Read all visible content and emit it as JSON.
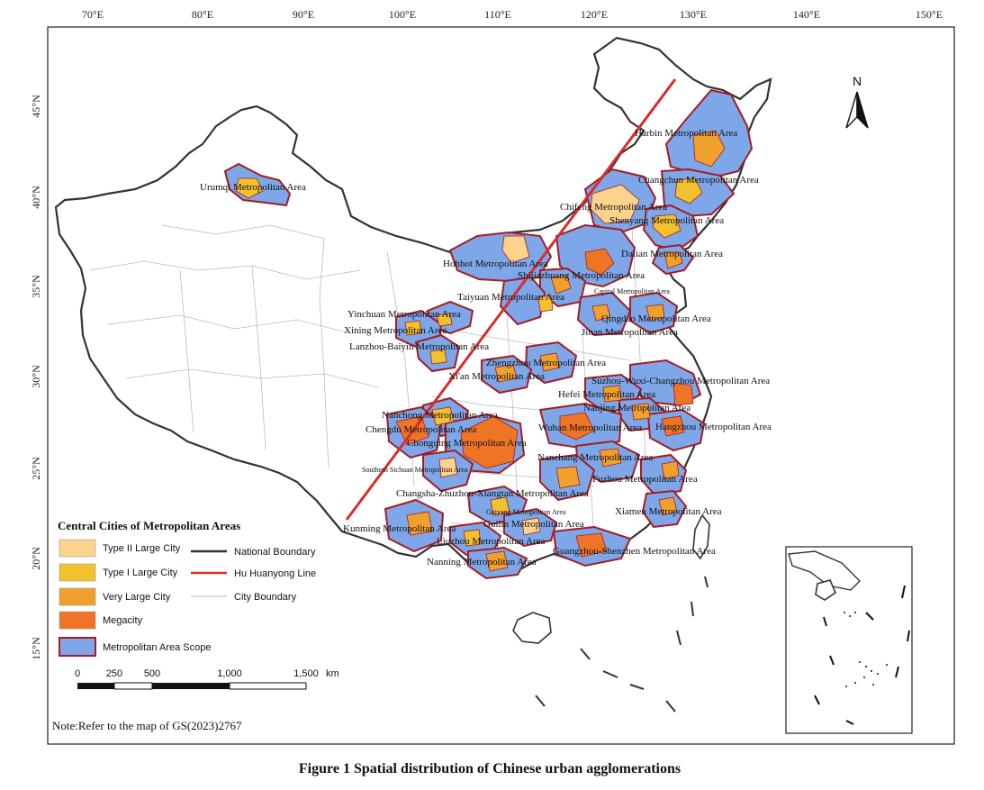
{
  "map": {
    "lon_ticks": [
      "70°E",
      "80°E",
      "90°E",
      "100°E",
      "110°E",
      "120°E",
      "130°E",
      "140°E",
      "150°E"
    ],
    "lat_ticks": [
      "45°N",
      "40°N",
      "35°N",
      "30°N",
      "25°N",
      "20°N",
      "15°N"
    ],
    "north_label": "N",
    "colors": {
      "type2": "#FBD38D",
      "type1": "#F2C12E",
      "very_large": "#F0A02C",
      "megacity": "#EE7426",
      "metro_fill": "#7DA7E8",
      "metro_border": "#A51C24",
      "hu_line": "#D42E2E",
      "national_boundary": "#333333",
      "city_boundary": "#BBBBBB"
    },
    "metro_areas": [
      {
        "name": "Harbin Metropolitan Area"
      },
      {
        "name": "Urumqi Metropolitan Area"
      },
      {
        "name": "Changchun Metropolitan Area"
      },
      {
        "name": "Chifeng Metropolitan Area"
      },
      {
        "name": "Shenyang Metropolitan Area"
      },
      {
        "name": "Dalian Metropolitan Area"
      },
      {
        "name": "Hohhot Metropolitan Area"
      },
      {
        "name": "Shijiazhuang Metropolitan Area"
      },
      {
        "name": "Capital Metropolitan Area"
      },
      {
        "name": "Taiyuan Metropolitan Area"
      },
      {
        "name": "Yinchuan Metropolitan Area"
      },
      {
        "name": "Qingdao Metropolitan Area"
      },
      {
        "name": "Xining Metropolitan Area"
      },
      {
        "name": "Jinan Metropolitan Area"
      },
      {
        "name": "Lanzhou-Baiyin Metropolitan Area"
      },
      {
        "name": "Zhengzhou Metropolitan Area"
      },
      {
        "name": "Xi'an Metropolitan Area"
      },
      {
        "name": "Suzhou-Wuxi-Changzhou Metropolitan Area"
      },
      {
        "name": "Hefei Metropolitan Area"
      },
      {
        "name": "Nanchong Metropolitan Area"
      },
      {
        "name": "Nanjing Metropolitan Area"
      },
      {
        "name": "Chengdu Metropolitan Area"
      },
      {
        "name": "Wuhan Metropolitan Area"
      },
      {
        "name": "Hangzhou Metropolitan Area"
      },
      {
        "name": "Chongqing Metropolitan Area"
      },
      {
        "name": "Nanchang Metropolitan Area"
      },
      {
        "name": "Southern Sichuan Metropolitan Area"
      },
      {
        "name": "Fuzhou Metropolitan Area"
      },
      {
        "name": "Changsha-Zhuzhou-Xiangtan Metropolitan Area"
      },
      {
        "name": "Guiyang Metropolitan Area"
      },
      {
        "name": "Xiamen Metropolitan Area"
      },
      {
        "name": "Kunming Metropolitan Area"
      },
      {
        "name": "Guilin Metropolitan Area"
      },
      {
        "name": "Liuzhou Metropolitan Area"
      },
      {
        "name": "Guangzhou-Shenzhen Metropolitan Area"
      },
      {
        "name": "Nanning Metropolitan Area"
      }
    ]
  },
  "legend": {
    "title": "Central Cities of Metropolitan Areas",
    "type2": "Type II Large City",
    "type1": "Type I Large City",
    "very_large": "Very Large City",
    "megacity": "Megacity",
    "metro_scope": "Metropolitan Area Scope",
    "national_boundary": "National Boundary",
    "hu_line": "Hu Huanyong Line",
    "city_boundary": "City Boundary"
  },
  "scale": {
    "ticks": [
      "0",
      "250",
      "500",
      "1,000",
      "1,500"
    ],
    "unit": "km"
  },
  "note": "Note:Refer to the map of GS(2023)2767",
  "caption": "Figure 1  Spatial distribution of Chinese urban agglomerations"
}
